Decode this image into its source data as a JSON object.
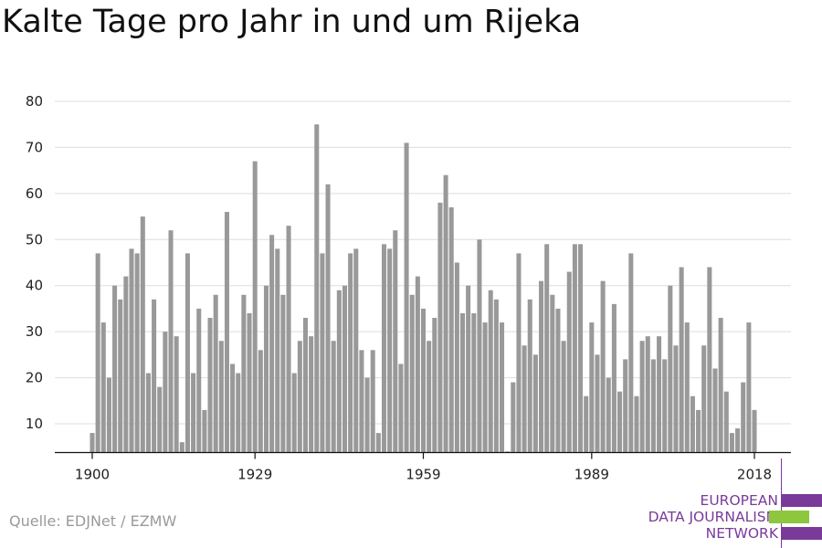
{
  "title": "Kalte Tage pro Jahr in und um Rijeka",
  "source": "Quelle: EDJNet / EZMW",
  "logo": {
    "lines": [
      "EUROPEAN",
      "DATA JOURNALISM",
      "NETWORK"
    ],
    "colors": {
      "purple": "#7a3a99",
      "green": "#8dc63f"
    }
  },
  "chart_data": {
    "type": "bar",
    "title": "Kalte Tage pro Jahr in und um Rijeka",
    "xlabel": "",
    "ylabel": "",
    "x_start": 1900,
    "x_end": 2018,
    "xticks": [
      1900,
      1929,
      1959,
      1989,
      2018
    ],
    "yticks": [
      10,
      20,
      30,
      40,
      50,
      60,
      70,
      80
    ],
    "ylim": [
      3.5,
      80
    ],
    "grid": true,
    "bar_color": "#999999",
    "values": [
      8,
      47,
      32,
      20,
      40,
      37,
      42,
      48,
      47,
      55,
      21,
      37,
      18,
      30,
      52,
      29,
      6,
      47,
      21,
      35,
      13,
      33,
      38,
      28,
      56,
      23,
      21,
      38,
      34,
      67,
      26,
      40,
      51,
      48,
      38,
      53,
      21,
      28,
      33,
      29,
      75,
      47,
      62,
      28,
      39,
      40,
      47,
      48,
      26,
      20,
      26,
      8,
      49,
      48,
      52,
      23,
      71,
      38,
      42,
      35,
      28,
      33,
      58,
      64,
      57,
      45,
      34,
      40,
      34,
      50,
      32,
      39,
      37,
      32,
      4,
      19,
      47,
      27,
      37,
      25,
      41,
      49,
      38,
      35,
      28,
      43,
      49,
      49,
      16,
      32,
      25,
      41,
      20,
      36,
      17,
      24,
      47,
      16,
      28,
      29,
      24,
      29,
      24,
      40,
      27,
      44,
      32,
      16,
      13,
      27,
      44,
      22,
      33,
      17,
      8,
      9,
      19,
      32,
      13
    ]
  }
}
